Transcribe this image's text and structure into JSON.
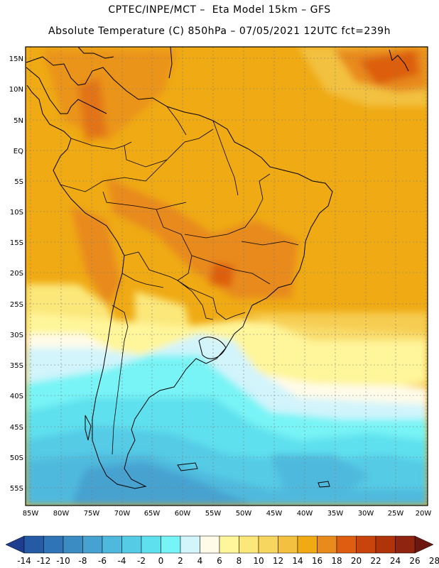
{
  "header": {
    "line1": "CPTEC/INPE/MCT –  Eta Model 15km – GFS",
    "line2": "Absolute Temperature (C) 850hPa – 07/05/2021 12UTC fct=239h"
  },
  "map": {
    "lat_labels": [
      "15N",
      "10N",
      "5N",
      "EQ",
      "5S",
      "10S",
      "15S",
      "20S",
      "25S",
      "30S",
      "35S",
      "40S",
      "45S",
      "50S",
      "55S"
    ],
    "lon_labels": [
      "85W",
      "80W",
      "75W",
      "70W",
      "65W",
      "60W",
      "55W",
      "50W",
      "45W",
      "40W",
      "35W",
      "30W",
      "25W",
      "20W"
    ]
  },
  "colorbar": {
    "labels": [
      "-14",
      "-12",
      "-10",
      "-8",
      "-6",
      "-4",
      "-2",
      "0",
      "2",
      "4",
      "6",
      "8",
      "10",
      "12",
      "14",
      "16",
      "18",
      "20",
      "22",
      "24",
      "26",
      "28"
    ],
    "colors": [
      "#1e3d8f",
      "#255aa5",
      "#2f74b6",
      "#3a8cc3",
      "#46a2d0",
      "#4fb9dd",
      "#55cbe6",
      "#5fe0ee",
      "#78f4f6",
      "#d2f4fb",
      "#fffbe8",
      "#fff59a",
      "#fbe77a",
      "#f7d660",
      "#f3c13f",
      "#efaa14",
      "#e88a1c",
      "#dd5e10",
      "#c8440c",
      "#b03409",
      "#8f2410",
      "#6a1810"
    ]
  }
}
